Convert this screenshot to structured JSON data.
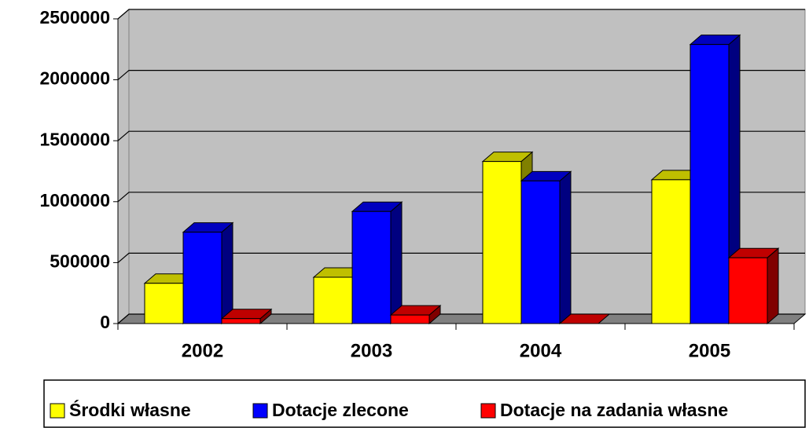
{
  "chart_data": {
    "type": "bar3d",
    "categories": [
      "2002",
      "2003",
      "2004",
      "2005"
    ],
    "series": [
      {
        "name": "Środki własne",
        "color": "#ffff00",
        "values": [
          330000,
          380000,
          1330000,
          1180000
        ]
      },
      {
        "name": "Dotacje zlecone",
        "color": "#0000ff",
        "values": [
          750000,
          920000,
          1170000,
          2290000
        ]
      },
      {
        "name": "Dotacje na zadania własne",
        "color": "#ff0000",
        "values": [
          40000,
          70000,
          0,
          540000
        ]
      }
    ],
    "ylim": [
      0,
      2500000
    ],
    "yticks": [
      0,
      500000,
      1000000,
      1500000,
      2000000,
      2500000
    ],
    "grid": true,
    "legend": "bottom"
  }
}
